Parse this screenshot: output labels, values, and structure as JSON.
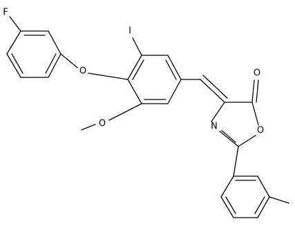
{
  "atoms": [
    "F",
    "I",
    "O",
    "O",
    "N",
    "O",
    "O"
  ]
}
